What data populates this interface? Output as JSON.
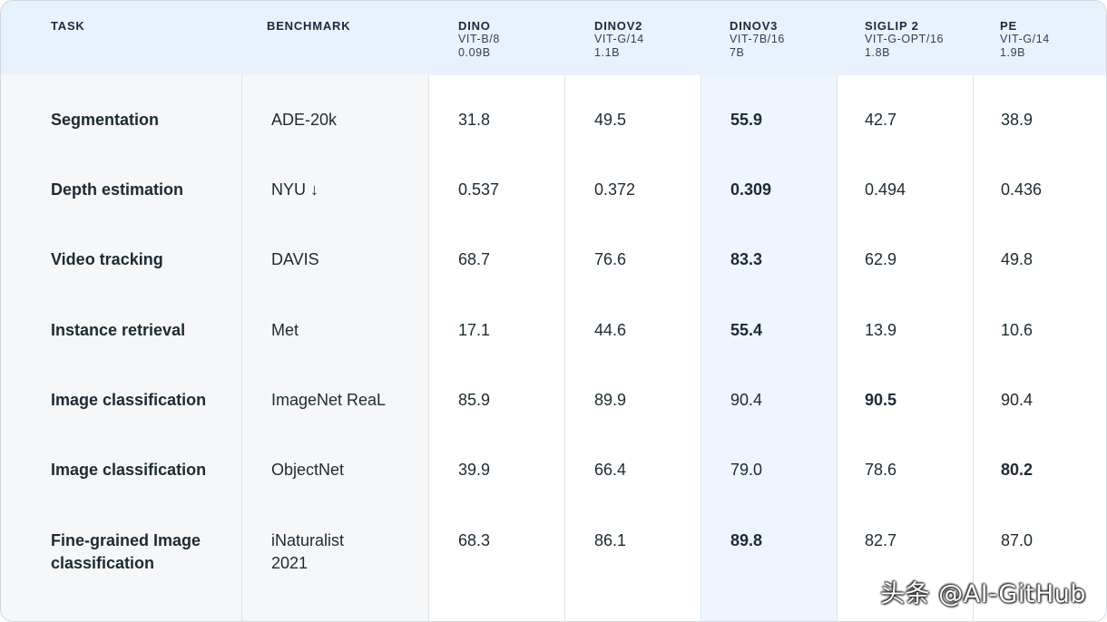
{
  "header": {
    "task": "TASK",
    "benchmark": "BENCHMARK",
    "models": [
      {
        "name": "DINO",
        "arch": "VIT-B/8",
        "params": "0.09B"
      },
      {
        "name": "DINOV2",
        "arch": "VIT-G/14",
        "params": "1.1B"
      },
      {
        "name": "DINOV3",
        "arch": "VIT-7B/16",
        "params": "7B"
      },
      {
        "name": "SIGLIP 2",
        "arch": "VIT-G-OPT/16",
        "params": "1.8B"
      },
      {
        "name": "PE",
        "arch": "VIT-G/14",
        "params": "1.9B"
      }
    ]
  },
  "rows": [
    {
      "task": "Segmentation",
      "benchmark": "ADE-20k",
      "values": [
        "31.8",
        "49.5",
        "55.9",
        "42.7",
        "38.9"
      ],
      "best": 2
    },
    {
      "task": "Depth estimation",
      "benchmark": "NYU ↓",
      "values": [
        "0.537",
        "0.372",
        "0.309",
        "0.494",
        "0.436"
      ],
      "best": 2
    },
    {
      "task": "Video tracking",
      "benchmark": "DAVIS",
      "values": [
        "68.7",
        "76.6",
        "83.3",
        "62.9",
        "49.8"
      ],
      "best": 2
    },
    {
      "task": "Instance retrieval",
      "benchmark": "Met",
      "values": [
        "17.1",
        "44.6",
        "55.4",
        "13.9",
        "10.6"
      ],
      "best": 2
    },
    {
      "task": "Image classification",
      "benchmark": "ImageNet ReaL",
      "values": [
        "85.9",
        "89.9",
        "90.4",
        "90.5",
        "90.4"
      ],
      "best": 3
    },
    {
      "task": "Image classification",
      "benchmark": "ObjectNet",
      "values": [
        "39.9",
        "66.4",
        "79.0",
        "78.6",
        "80.2"
      ],
      "best": 4
    },
    {
      "task": "Fine-grained Image classification",
      "benchmark": "iNaturalist 2021",
      "values": [
        "68.3",
        "86.1",
        "89.8",
        "82.7",
        "87.0"
      ],
      "best": 2
    }
  ],
  "watermark": "头条 @AI-GitHub",
  "colors": {
    "header_bg": "#e8f2fd",
    "highlight_col": "#eef5fd",
    "text": "#1c2b33"
  }
}
